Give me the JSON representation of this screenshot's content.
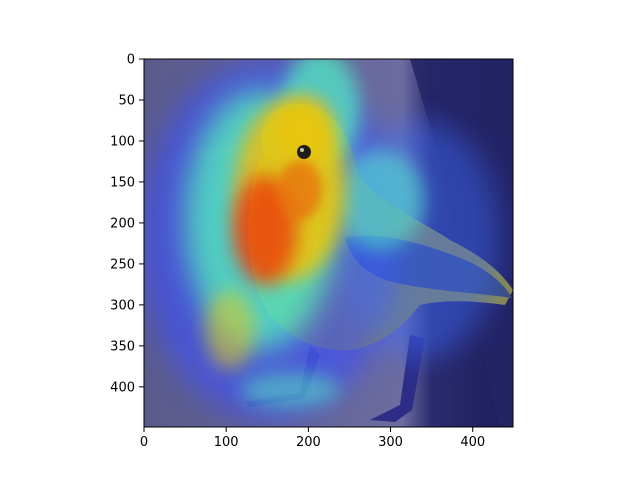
{
  "figure": {
    "type": "image-with-heatmap-overlay",
    "subject": "bird",
    "colormap": "jet",
    "colors": {
      "hot": "#ff3c00",
      "warm": "#ffd200",
      "mid": "#50ffc8",
      "cool": "#3c50ff",
      "cold": "#28208c",
      "bird_body": "#7a7a55",
      "bird_wing": "#3f5a78"
    }
  },
  "axes": {
    "x": {
      "ticks": [
        0,
        100,
        200,
        300,
        400
      ],
      "tick_labels": [
        "0",
        "100",
        "200",
        "300",
        "400"
      ],
      "range": [
        0,
        449
      ]
    },
    "y": {
      "ticks": [
        0,
        50,
        100,
        150,
        200,
        250,
        300,
        350,
        400
      ],
      "tick_labels": [
        "0",
        "50",
        "100",
        "150",
        "200",
        "250",
        "300",
        "350",
        "400"
      ],
      "range": [
        0,
        449
      ]
    }
  }
}
